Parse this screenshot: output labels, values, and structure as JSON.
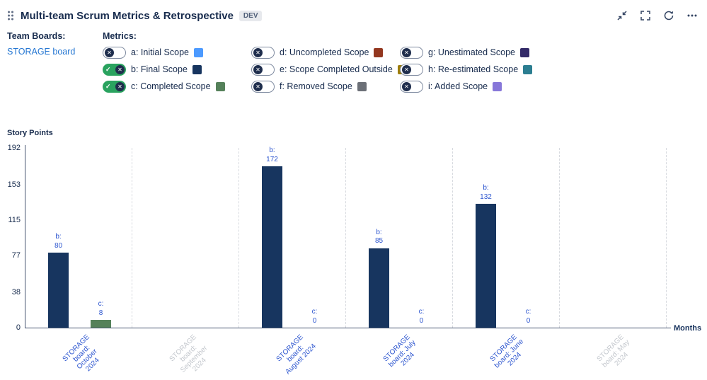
{
  "header": {
    "title": "Multi-team Scrum Metrics & Retrospective",
    "badge": "DEV",
    "action_icons": [
      "collapse-icon",
      "fullscreen-icon",
      "refresh-icon",
      "more-icon"
    ]
  },
  "team_boards": {
    "label": "Team Boards:",
    "board": "STORAGE board"
  },
  "metrics": {
    "label": "Metrics:",
    "items": [
      {
        "key": "a",
        "label": "a: Initial Scope",
        "color": "#4c9aff",
        "enabled": false
      },
      {
        "key": "b",
        "label": "b: Final Scope",
        "color": "#17355f",
        "enabled": true
      },
      {
        "key": "c",
        "label": "c: Completed Scope",
        "color": "#55815a",
        "enabled": true
      },
      {
        "key": "d",
        "label": "d: Uncompleted Scope",
        "color": "#93371f",
        "enabled": false
      },
      {
        "key": "e",
        "label": "e: Scope Completed Outside",
        "color": "#9d7d0a",
        "enabled": false
      },
      {
        "key": "f",
        "label": "f: Removed Scope",
        "color": "#6c7077",
        "enabled": false
      },
      {
        "key": "g",
        "label": "g: Unestimated Scope",
        "color": "#332a68",
        "enabled": false
      },
      {
        "key": "h",
        "label": "h: Re-estimated Scope",
        "color": "#2c7e91",
        "enabled": false
      },
      {
        "key": "i",
        "label": "i: Added Scope",
        "color": "#8777d9",
        "enabled": false
      }
    ]
  },
  "icons": {
    "toggle_on_glyph": "✓",
    "toggle_off_glyph": "✕"
  },
  "chart_data": {
    "type": "bar",
    "title": "",
    "ylabel": "Story Points",
    "xlabel": "Months",
    "ylim": [
      0,
      192
    ],
    "yticks": [
      192,
      153,
      115,
      77,
      38,
      0
    ],
    "grid": "vertical-dashed",
    "legend_position": "top-toggles",
    "categories": [
      "STORAGE board: October 2024",
      "STORAGE board: September 2024",
      "STORAGE board: August 2024",
      "STORAGE board: July 2024",
      "STORAGE board: June 2024",
      "STORAGE board: May 2024"
    ],
    "active": [
      true,
      false,
      true,
      true,
      true,
      false
    ],
    "series": [
      {
        "name": "b: Final Scope",
        "color": "#17355f",
        "values": [
          80,
          null,
          172,
          85,
          132,
          null
        ]
      },
      {
        "name": "c: Completed Scope",
        "color": "#55815a",
        "values": [
          8,
          null,
          0,
          0,
          0,
          null
        ]
      }
    ],
    "label_color": "#2c55cf",
    "inactive_label_color": "#c3c7cd"
  }
}
